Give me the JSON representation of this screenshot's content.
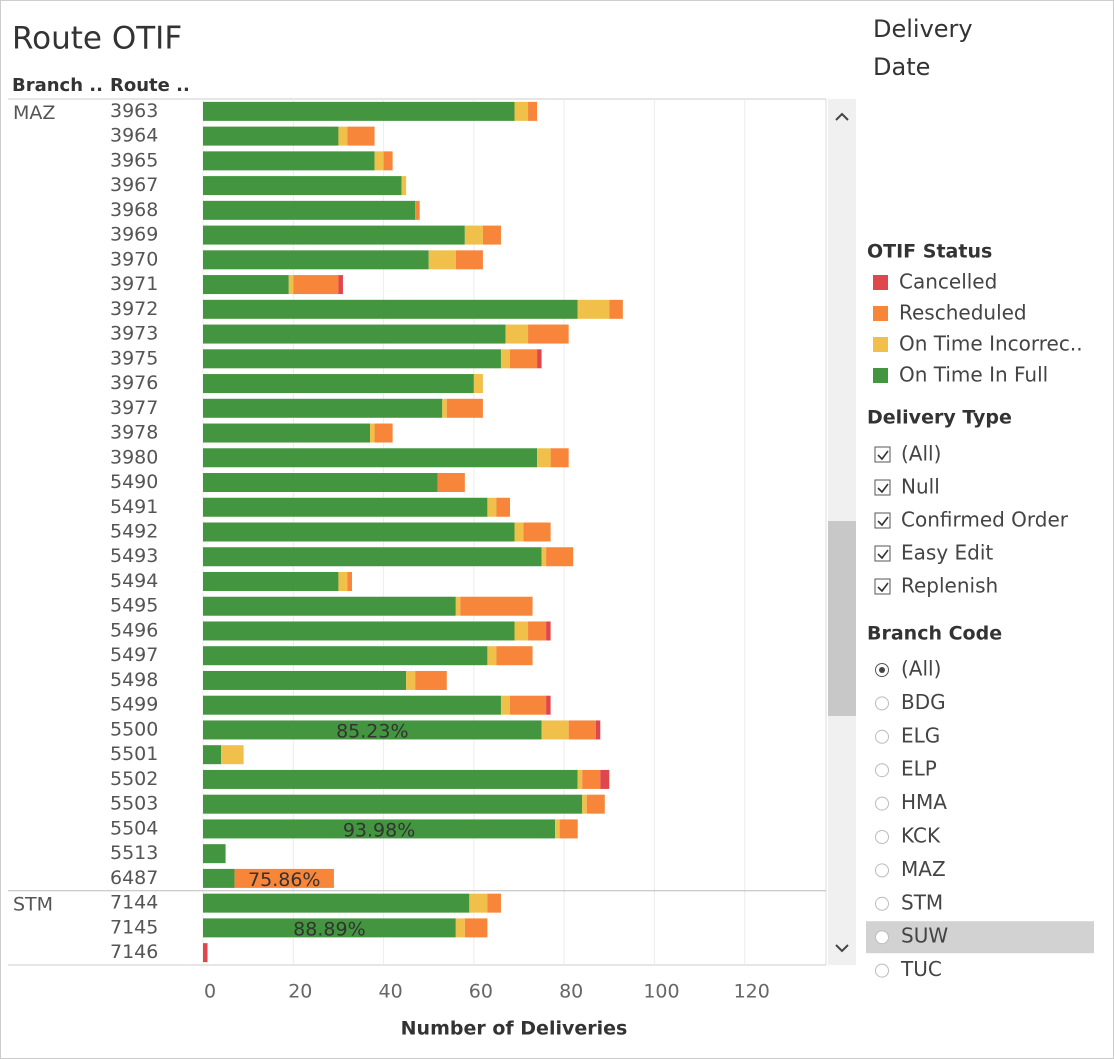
{
  "chart_data": {
    "type": "stacked-bar-horizontal",
    "title": "Route OTIF",
    "column_headers": [
      "Branch ..",
      "Route .."
    ],
    "x_label": "Number of Deliveries",
    "categories": [
      "3963",
      "3964",
      "3965",
      "3967",
      "3968",
      "3969",
      "3970",
      "3971",
      "3972",
      "3973",
      "3975",
      "3976",
      "3977",
      "3978",
      "3980",
      "5490",
      "5491",
      "5492",
      "5493",
      "5494",
      "5495",
      "5496",
      "5497",
      "5498",
      "5499",
      "5500",
      "5501",
      "5502",
      "5503",
      "5504",
      "5513",
      "6487",
      "7144",
      "7145",
      "7146"
    ],
    "group_labels": [
      "MAZ",
      null,
      null,
      null,
      null,
      null,
      null,
      null,
      null,
      null,
      null,
      null,
      null,
      null,
      null,
      null,
      null,
      null,
      null,
      null,
      null,
      null,
      null,
      null,
      null,
      null,
      null,
      null,
      null,
      null,
      null,
      null,
      "STM",
      null,
      null
    ],
    "series": [
      {
        "name": "On Time In Full",
        "color": "#43963f",
        "values": [
          69,
          30,
          38,
          44,
          47,
          58,
          50,
          19,
          83,
          67,
          66,
          60,
          53,
          37,
          74,
          52,
          63,
          69,
          75,
          30,
          56,
          69,
          63,
          45,
          66,
          75,
          4,
          83,
          84,
          78,
          5,
          7,
          59,
          56,
          0
        ]
      },
      {
        "name": "On Time Incorrec..",
        "color": "#f1c04a",
        "values": [
          3,
          2,
          2,
          1,
          0,
          4,
          6,
          1,
          7,
          5,
          2,
          2,
          1,
          1,
          3,
          0,
          2,
          2,
          1,
          2,
          1,
          3,
          2,
          2,
          2,
          6,
          5,
          1,
          1,
          1,
          0,
          0,
          4,
          2,
          0
        ]
      },
      {
        "name": "Rescheduled",
        "color": "#f7853a",
        "values": [
          2,
          6,
          2,
          0,
          1,
          4,
          6,
          10,
          3,
          9,
          6,
          0,
          8,
          4,
          4,
          6,
          3,
          6,
          6,
          1,
          16,
          4,
          8,
          7,
          8,
          6,
          0,
          4,
          4,
          4,
          0,
          22,
          3,
          5,
          0
        ]
      },
      {
        "name": "Cancelled",
        "color": "#e0474c",
        "values": [
          0,
          0,
          0,
          0,
          0,
          0,
          0,
          1,
          0,
          0,
          1,
          0,
          0,
          0,
          0,
          0,
          0,
          0,
          0,
          0,
          0,
          1,
          0,
          0,
          1,
          1,
          0,
          2,
          0,
          0,
          0,
          0,
          0,
          0,
          1
        ]
      }
    ],
    "percent_labels": [
      null,
      null,
      null,
      null,
      null,
      null,
      null,
      null,
      null,
      null,
      null,
      null,
      null,
      null,
      null,
      null,
      null,
      null,
      null,
      null,
      null,
      null,
      null,
      null,
      null,
      "85.23%",
      null,
      null,
      null,
      "93.98%",
      null,
      "75.86%",
      null,
      "88.89%",
      null
    ],
    "xlim": [
      0,
      138
    ],
    "xticks": [
      0,
      20,
      40,
      60,
      80,
      100,
      120
    ],
    "grid": true,
    "legend_title": "OTIF Status",
    "legend_position": "right"
  },
  "filters": {
    "date_title": [
      "Delivery",
      "Date"
    ],
    "delivery_type": {
      "title": "Delivery Type",
      "options": [
        "(All)",
        "Null",
        "Confirmed Order",
        "Easy Edit",
        "Replenish"
      ]
    },
    "branch_code": {
      "title": "Branch Code",
      "options": [
        "(All)",
        "BDG",
        "ELG",
        "ELP",
        "HMA",
        "KCK",
        "MAZ",
        "STM",
        "SUW",
        "TUC"
      ],
      "selected": "(All)",
      "highlighted": "SUW"
    }
  }
}
